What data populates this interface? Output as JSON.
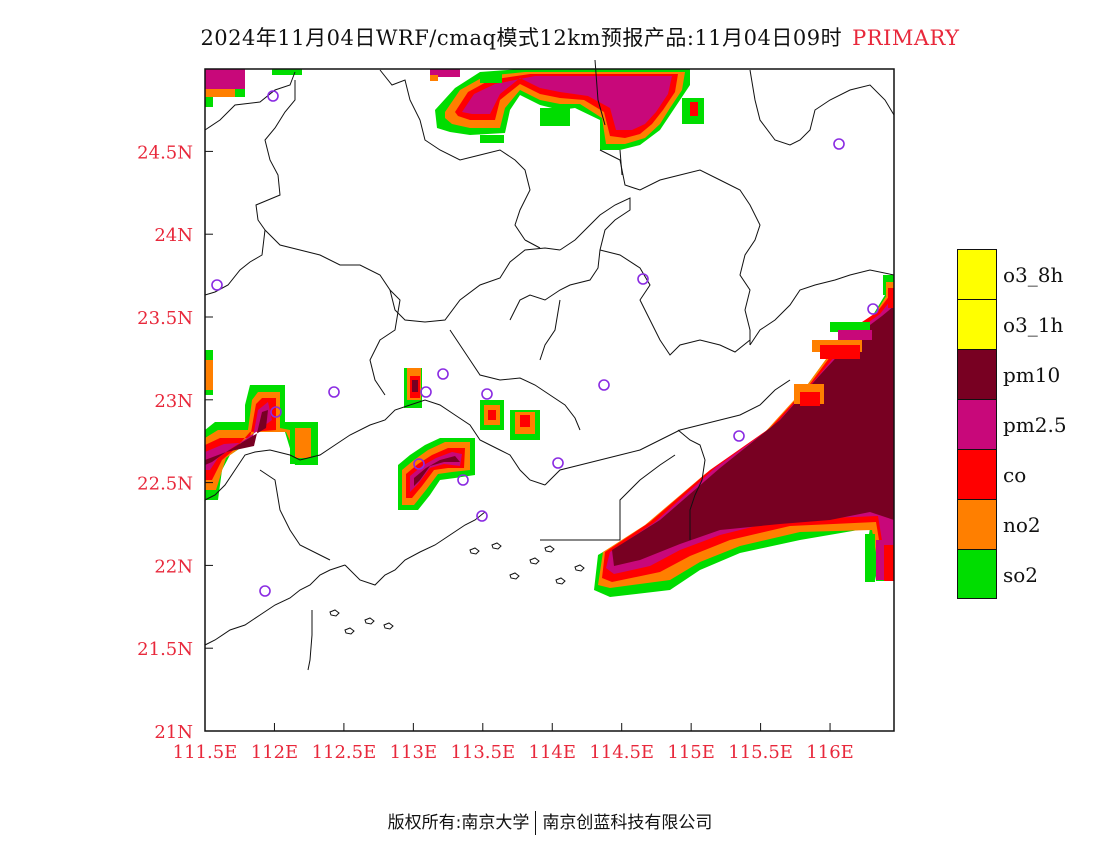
{
  "title": {
    "main": "2024年11月04日WRF/cmaq模式12km预报产品:11月04日09时",
    "pollutant": "PRIMARY"
  },
  "axes": {
    "lat_labels": [
      "24.5N",
      "24N",
      "23.5N",
      "23N",
      "22.5N",
      "22N",
      "21.5N",
      "21N"
    ],
    "lon_labels": [
      "111.5E",
      "112E",
      "112.5E",
      "113E",
      "113.5E",
      "114E",
      "114.5E",
      "115E",
      "115.5E",
      "116E"
    ],
    "label_color": "#e8283b",
    "lat_range": [
      21.0,
      25.0
    ],
    "lon_range": [
      111.5,
      116.5
    ]
  },
  "legend": [
    {
      "label": "o3_8h",
      "color": "#ffff00"
    },
    {
      "label": "o3_1h",
      "color": "#ffff00"
    },
    {
      "label": "pm10",
      "color": "#780022"
    },
    {
      "label": "pm2.5",
      "color": "#c8087a"
    },
    {
      "label": "co",
      "color": "#ff0000"
    },
    {
      "label": "no2",
      "color": "#ff7f00"
    },
    {
      "label": "so2",
      "color": "#00dd00"
    }
  ],
  "stations_color": "#8a2be2",
  "footer": {
    "left": "版权所有:南京大学",
    "right": "南京创蓝科技有限公司"
  }
}
